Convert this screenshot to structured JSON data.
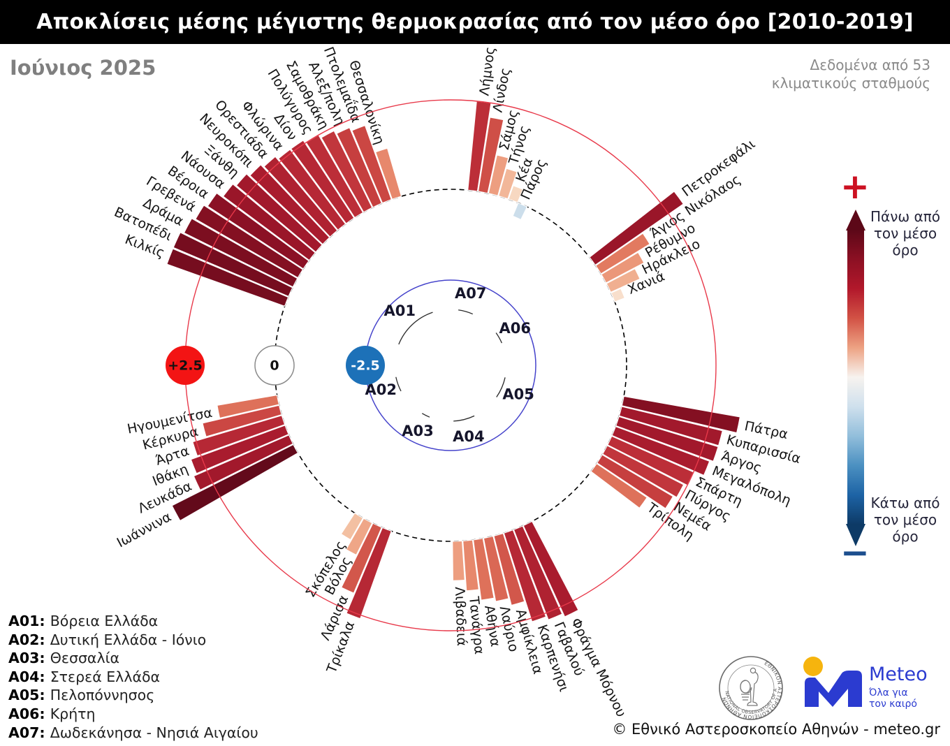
{
  "header": {
    "title": "Αποκλίσεις μέσης μέγιστης θερμοκρασίας από τον μέσο όρο [2010-2019]"
  },
  "subheader": {
    "month": "Ιούνιος 2025",
    "note_line1": "Δεδομένα από 53",
    "note_line2": "κλιματικούς σταθμούς"
  },
  "badges": {
    "plus": "+2.5",
    "zero": "0",
    "minus": "-2.5"
  },
  "color_legend": {
    "plus_sign": "+",
    "minus_sign": "−",
    "above_label": "Πάνω από τον μέσο όρο",
    "below_label": "Κάτω από τον μέσο όρο",
    "gradient": [
      "#5c0818",
      "#8c1023",
      "#b2182b",
      "#d25245",
      "#eda283",
      "#f7f3ef",
      "#cfe0ed",
      "#92bedb",
      "#4b90c1",
      "#1d63a5",
      "#0d3a66"
    ]
  },
  "regions_legend": [
    {
      "code": "A01",
      "name": "Βόρεια Ελλάδα"
    },
    {
      "code": "A02",
      "name": "Δυτική Ελλάδα - Ιόνιο"
    },
    {
      "code": "A03",
      "name": "Θεσσαλία"
    },
    {
      "code": "A04",
      "name": "Στερεά Ελλάδα"
    },
    {
      "code": "A05",
      "name": "Πελοπόννησος"
    },
    {
      "code": "A06",
      "name": "Κρήτη"
    },
    {
      "code": "A07",
      "name": "Δωδεκάνησα - Νησιά Αιγαίου"
    }
  ],
  "footer": {
    "copyright": "© Εθνικό Αστεροσκοπείο Αθηνών - meteo.gr",
    "seal_text_top": "ΕΘΝΙΚΟΝ ΑΣΤΕΡΟΣΚΟΠΕΙΟΝ ΑΘΗΝΩΝ",
    "seal_text_bottom": "NATIONAL OBSERVATORY OF ATHENS",
    "meteo_brand": "Meteo",
    "meteo_tagline1": "Όλα για",
    "meteo_tagline2": "τον καιρό"
  },
  "colors": {
    "title_bg": "#000000",
    "ring_red": "#e8394a",
    "ring_dashed": "#000000",
    "ring_blue": "#4543cb",
    "badge_plus_bg": "#f31414",
    "badge_minus_bg": "#1d71b8",
    "badge_zero_bg": "#ffffff",
    "meteo_blue": "#2b3bd0",
    "meteo_yellow": "#f6b40e"
  },
  "chart_data": {
    "type": "bar",
    "subtype": "polar-radial",
    "title": "Αποκλίσεις μέσης μέγιστης θερμοκρασίας από τον μέσο όρο [2010-2019]",
    "period": "Ιούνιος 2025",
    "station_count": 53,
    "rings": {
      "inner": -2.5,
      "zero": 0,
      "outer": 2.5
    },
    "value_range": [
      -2.5,
      3.8
    ],
    "bar_width_deg": 3.4,
    "colormap": [
      [
        -1.0,
        "#8fb8d8"
      ],
      [
        -0.5,
        "#c3d8e8"
      ],
      [
        -0.15,
        "#e4edf4"
      ],
      [
        0.05,
        "#f6efe9"
      ],
      [
        0.35,
        "#f8dcc6"
      ],
      [
        0.7,
        "#f3c0a2"
      ],
      [
        1.0,
        "#efa687"
      ],
      [
        1.3,
        "#e98f72"
      ],
      [
        1.6,
        "#e27a60"
      ],
      [
        1.9,
        "#d65f4f"
      ],
      [
        2.2,
        "#cb4743"
      ],
      [
        2.5,
        "#bc2e38"
      ],
      [
        2.8,
        "#a91c2e"
      ],
      [
        3.1,
        "#931327"
      ],
      [
        3.4,
        "#7c0e20"
      ],
      [
        3.8,
        "#630a1b"
      ],
      [
        4.2,
        "#520716"
      ]
    ],
    "regions": [
      {
        "code": "A07",
        "name": "Δωδεκάνησα - Νησιά Αιγαίου",
        "start_deg": 5.5,
        "stations": [
          {
            "name": "Λήμνος",
            "value": 2.5
          },
          {
            "name": "Λίνδος",
            "value": 2.1
          },
          {
            "name": "Σάμος",
            "value": 1.1
          },
          {
            "name": "Τήνος",
            "value": 0.8
          },
          {
            "name": "Κέα",
            "value": 0.4
          },
          {
            "name": "Πάρος",
            "value": -0.4
          }
        ]
      },
      {
        "code": "A06",
        "name": "Κρήτη",
        "start_deg": 52.0,
        "stations": [
          {
            "name": "Πετροκεφάλι",
            "value": 3.0
          },
          {
            "name": "Άγιος Νικόλαος",
            "value": 1.6
          },
          {
            "name": "Ρέθυμνο",
            "value": 1.2
          },
          {
            "name": "Ηράκλειο",
            "value": 0.9
          },
          {
            "name": "Χανιά",
            "value": 0.3
          }
        ]
      },
      {
        "code": "A05",
        "name": "Πελοπόννησος",
        "start_deg": 100.0,
        "stations": [
          {
            "name": "Πάτρα",
            "value": 3.3
          },
          {
            "name": "Κυπαρισσία",
            "value": 2.9
          },
          {
            "name": "Άργος",
            "value": 2.9
          },
          {
            "name": "Μεγαλόπολη",
            "value": 2.8
          },
          {
            "name": "Σπάρτη",
            "value": 2.5
          },
          {
            "name": "Πύργος",
            "value": 2.4
          },
          {
            "name": "Νεμέα",
            "value": 2.3
          },
          {
            "name": "Τρίπολη",
            "value": 1.7
          }
        ]
      },
      {
        "code": "A04",
        "name": "Στερεά Ελλάδα",
        "start_deg": 152.3,
        "stations": [
          {
            "name": "Φράγμα Μόρνου",
            "value": 2.8
          },
          {
            "name": "Γαβαλού",
            "value": 2.7
          },
          {
            "name": "Καρπενήσι",
            "value": 2.6
          },
          {
            "name": "Αμφίκλεια",
            "value": 2.0
          },
          {
            "name": "Λαύριο",
            "value": 1.8
          },
          {
            "name": "Αθήνα",
            "value": 1.7
          },
          {
            "name": "Τανάγρα",
            "value": 1.4
          },
          {
            "name": "Λιβαδειά",
            "value": 1.1
          }
        ]
      },
      {
        "code": "A03",
        "name": "Θεσσαλία",
        "start_deg": 199.5,
        "stations": [
          {
            "name": "Τρίκαλα",
            "value": 2.6
          },
          {
            "name": "Λάρισα",
            "value": 2.0
          },
          {
            "name": "Βόλος",
            "value": 1.0
          },
          {
            "name": "Σκόπελος",
            "value": 0.7
          }
        ]
      },
      {
        "code": "A02",
        "name": "Δυτική Ελλάδα - Ιόνιο",
        "start_deg": 240.0,
        "stations": [
          {
            "name": "Ιωάννινα",
            "value": 3.8
          },
          {
            "name": "Λευκάδα",
            "value": 2.9
          },
          {
            "name": "Ιθάκη",
            "value": 2.8
          },
          {
            "name": "Άρτα",
            "value": 2.6
          },
          {
            "name": "Κέρκυρα",
            "value": 2.2
          },
          {
            "name": "Ηγουμενίτσα",
            "value": 1.7
          }
        ]
      },
      {
        "code": "A01",
        "name": "Βόρεια Ελλάδα",
        "start_deg": 289.5,
        "stations": [
          {
            "name": "Κιλκίς",
            "value": 3.5
          },
          {
            "name": "Βατοπέδι",
            "value": 3.5
          },
          {
            "name": "Δράμα",
            "value": 3.4
          },
          {
            "name": "Γρεβενά",
            "value": 3.3
          },
          {
            "name": "Βέροια",
            "value": 3.2
          },
          {
            "name": "Νάουσα",
            "value": 3.0
          },
          {
            "name": "Ξάνθη",
            "value": 2.9
          },
          {
            "name": "Νευροκόπι",
            "value": 2.8
          },
          {
            "name": "Ορεστιάδα",
            "value": 2.7
          },
          {
            "name": "Φλώρινα",
            "value": 2.6
          },
          {
            "name": "Δίον",
            "value": 2.6
          },
          {
            "name": "Πολύγυρος",
            "value": 2.5
          },
          {
            "name": "Σαμοθράκη",
            "value": 2.4
          },
          {
            "name": "Αλεξ/πολη",
            "value": 2.3
          },
          {
            "name": "Πτολεμαΐδα",
            "value": 2.2
          },
          {
            "name": "Θεσσαλονίκη",
            "value": 1.4
          }
        ]
      }
    ]
  }
}
